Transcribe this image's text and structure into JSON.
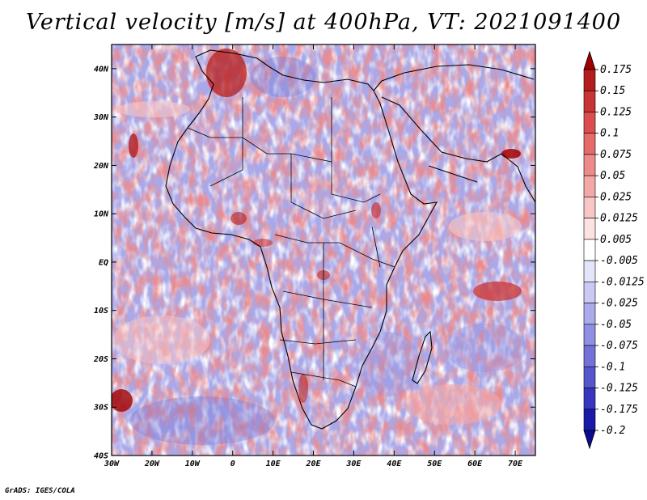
{
  "title": "Vertical velocity [m/s] at 400hPa, VT: 2021091400",
  "credit": "GrADS: IGES/COLA",
  "map": {
    "lon_range": [
      -30,
      75
    ],
    "lat_range": [
      -40,
      45
    ],
    "lon_ticks": [
      "30W",
      "20W",
      "10W",
      "0",
      "10E",
      "20E",
      "30E",
      "40E",
      "50E",
      "60E",
      "70E"
    ],
    "lat_ticks": [
      "40N",
      "30N",
      "20N",
      "10N",
      "EQ",
      "10S",
      "20S",
      "30S",
      "40S"
    ],
    "field": "vertical velocity at 400hPa"
  },
  "colorbar": {
    "levels": [
      "0.175",
      "0.15",
      "0.125",
      "0.1",
      "0.075",
      "0.05",
      "0.025",
      "0.0125",
      "0.005",
      "-0.005",
      "-0.0125",
      "-0.025",
      "-0.05",
      "-0.075",
      "-0.1",
      "-0.125",
      "-0.175",
      "-0.2"
    ],
    "colors": [
      "#a00000",
      "#b51c1c",
      "#c93434",
      "#dc4e4e",
      "#e66a6a",
      "#ee8a8a",
      "#f4a8a8",
      "#f9c6c6",
      "#fde2e2",
      "#ffffff",
      "#e4e4fb",
      "#c9c9f4",
      "#ababec",
      "#8f8fe3",
      "#7272d8",
      "#5555cc",
      "#3636be",
      "#1a1aa8",
      "#0c0c90"
    ]
  }
}
